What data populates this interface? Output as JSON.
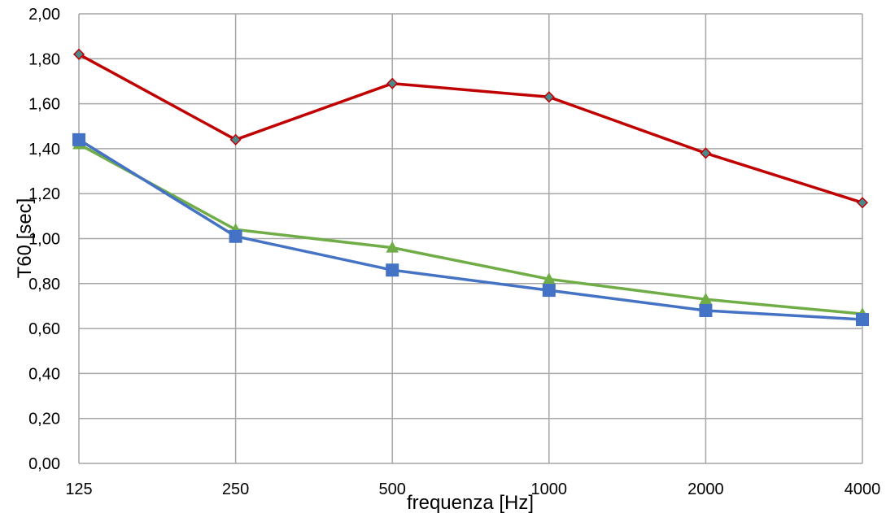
{
  "chart_data": {
    "type": "line",
    "title": "",
    "xlabel": "frequenza [Hz]",
    "ylabel": "T60 [sec]",
    "categories": [
      "125",
      "250",
      "500",
      "1000",
      "2000",
      "4000"
    ],
    "y_tick_labels": [
      "0,00",
      "0,20",
      "0,40",
      "0,60",
      "0,80",
      "1,00",
      "1,20",
      "1,40",
      "1,60",
      "1,80",
      "2,00"
    ],
    "ylim": [
      0,
      2
    ],
    "grid": true,
    "legend": "none",
    "series": [
      {
        "values": [
          1.82,
          1.44,
          1.69,
          1.63,
          1.38,
          1.16
        ],
        "color": "#c00000",
        "marker": "diamond",
        "marker_fill": "#4a8a8c"
      },
      {
        "values": [
          1.42,
          1.04,
          0.96,
          0.82,
          0.73,
          0.665
        ],
        "color": "#70ad47",
        "marker": "triangle",
        "marker_fill": "#70ad47"
      },
      {
        "values": [
          1.44,
          1.01,
          0.86,
          0.77,
          0.68,
          0.64
        ],
        "color": "#4472c4",
        "marker": "square",
        "marker_fill": "#4472c4"
      }
    ]
  }
}
